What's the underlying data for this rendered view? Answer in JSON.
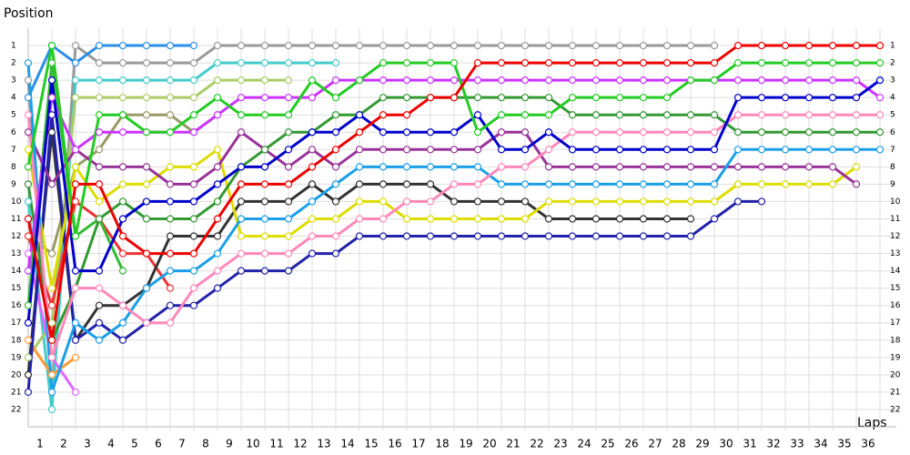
{
  "chart_data": {
    "type": "lap",
    "y_label": "Position",
    "x_label": "Laps",
    "x": [
      0,
      1,
      2,
      3,
      4,
      5,
      6,
      7,
      8,
      9,
      10,
      11,
      12,
      13,
      14,
      15,
      16,
      17,
      18,
      19,
      20,
      21,
      22,
      23,
      24,
      25,
      26,
      27,
      28,
      29,
      30,
      31,
      32,
      33,
      34,
      35,
      36
    ],
    "xlim": [
      0,
      36
    ],
    "ylim": [
      0,
      23
    ],
    "reversed": true,
    "grid": true,
    "xticks": [
      1,
      2,
      3,
      4,
      5,
      6,
      7,
      8,
      9,
      10,
      11,
      12,
      13,
      14,
      15,
      16,
      17,
      18,
      19,
      20,
      21,
      22,
      23,
      24,
      25,
      26,
      27,
      28,
      29,
      30,
      31,
      32,
      33,
      34,
      35,
      36
    ],
    "yticks": [
      1,
      2,
      3,
      4,
      5,
      6,
      7,
      8,
      9,
      10,
      11,
      12,
      13,
      14,
      15,
      16,
      17,
      18,
      19,
      20,
      21,
      22
    ],
    "series": [
      {
        "color": "#999999",
        "values": [
          3,
          21,
          1,
          2,
          2,
          2,
          2,
          2,
          1,
          1,
          1,
          1,
          1,
          1,
          1,
          1,
          1,
          1,
          1,
          1,
          1,
          1,
          1,
          1,
          1,
          1,
          1,
          1,
          1,
          1,
          null,
          null,
          null,
          null,
          null,
          null,
          null
        ]
      },
      {
        "color": "#2a8ee8",
        "values": [
          4,
          1,
          2,
          1,
          1,
          1,
          1,
          1,
          null,
          null,
          null,
          null,
          null,
          null,
          null,
          null,
          null,
          null,
          null,
          null,
          null,
          null,
          null,
          null,
          null,
          null,
          null,
          null,
          null,
          null,
          null,
          null,
          null,
          null,
          null,
          null,
          null
        ]
      },
      {
        "color": "#44cccc",
        "values": [
          10,
          22,
          3,
          3,
          3,
          3,
          3,
          3,
          2,
          2,
          2,
          2,
          2,
          2,
          null,
          null,
          null,
          null,
          null,
          null,
          null,
          null,
          null,
          null,
          null,
          null,
          null,
          null,
          null,
          null,
          null,
          null,
          null,
          null,
          null,
          null,
          null
        ]
      },
      {
        "color": "#aacc66",
        "values": [
          19,
          17,
          4,
          4,
          4,
          4,
          4,
          4,
          3,
          3,
          3,
          3,
          null,
          null,
          null,
          null,
          null,
          null,
          null,
          null,
          null,
          null,
          null,
          null,
          null,
          null,
          null,
          null,
          null,
          null,
          null,
          null,
          null,
          null,
          null,
          null,
          null
        ]
      },
      {
        "color": "#999966",
        "values": [
          12,
          13,
          8,
          7,
          5,
          5,
          5,
          6,
          5,
          null,
          null,
          null,
          null,
          null,
          null,
          null,
          null,
          null,
          null,
          null,
          null,
          null,
          null,
          null,
          null,
          null,
          null,
          null,
          null,
          null,
          null,
          null,
          null,
          null,
          null,
          null,
          null
        ]
      },
      {
        "color": "#ff9933",
        "values": [
          18,
          20,
          19,
          null,
          null,
          null,
          null,
          null,
          null,
          null,
          null,
          null,
          null,
          null,
          null,
          null,
          null,
          null,
          null,
          null,
          null,
          null,
          null,
          null,
          null,
          null,
          null,
          null,
          null,
          null,
          null,
          null,
          null,
          null,
          null,
          null,
          null
        ]
      },
      {
        "color": "#dd66ff",
        "values": [
          13,
          19,
          21,
          null,
          null,
          null,
          null,
          null,
          null,
          null,
          null,
          null,
          null,
          null,
          null,
          null,
          null,
          null,
          null,
          null,
          null,
          null,
          null,
          null,
          null,
          null,
          null,
          null,
          null,
          null,
          null,
          null,
          null,
          null,
          null,
          null,
          null
        ]
      },
      {
        "color": "#ee3333",
        "values": [
          12,
          16,
          10,
          11,
          13,
          13,
          15,
          null,
          null,
          null,
          null,
          null,
          null,
          null,
          null,
          null,
          null,
          null,
          null,
          null,
          null,
          null,
          null,
          null,
          null,
          null,
          null,
          null,
          null,
          null,
          null,
          null,
          null,
          null,
          null,
          null,
          null
        ]
      },
      {
        "color": "#33bb33",
        "values": [
          16,
          2,
          12,
          11,
          14,
          null,
          null,
          null,
          null,
          null,
          null,
          null,
          null,
          null,
          null,
          null,
          null,
          null,
          null,
          null,
          null,
          null,
          null,
          null,
          null,
          null,
          null,
          null,
          null,
          null,
          null,
          null,
          null,
          null,
          null,
          null,
          null
        ]
      },
      {
        "color": "#333333",
        "values": [
          20,
          6,
          18,
          16,
          16,
          15,
          12,
          12,
          12,
          10,
          10,
          10,
          9,
          10,
          9,
          9,
          9,
          9,
          10,
          10,
          10,
          10,
          11,
          11,
          11,
          11,
          11,
          11,
          11,
          null,
          null,
          null,
          null,
          null,
          null,
          null,
          null
        ]
      },
      {
        "color": "#2222aa",
        "values": [
          21,
          5,
          18,
          17,
          18,
          17,
          16,
          16,
          15,
          14,
          14,
          14,
          13,
          13,
          12,
          12,
          12,
          12,
          12,
          12,
          12,
          12,
          12,
          12,
          12,
          12,
          12,
          12,
          12,
          11,
          10,
          10,
          null,
          null,
          null,
          null,
          null
        ]
      },
      {
        "color": "#dddd00",
        "values": [
          7,
          15,
          8,
          10,
          9,
          9,
          8,
          8,
          7,
          12,
          12,
          12,
          11,
          11,
          10,
          10,
          11,
          11,
          11,
          11,
          11,
          11,
          10,
          10,
          10,
          10,
          10,
          10,
          10,
          10,
          9,
          9,
          9,
          9,
          9,
          8,
          null
        ]
      },
      {
        "color": "#993399",
        "values": [
          6,
          9,
          7,
          8,
          8,
          8,
          9,
          9,
          8,
          6,
          7,
          8,
          7,
          8,
          7,
          7,
          7,
          7,
          7,
          7,
          6,
          6,
          8,
          8,
          8,
          8,
          8,
          8,
          8,
          8,
          8,
          8,
          8,
          8,
          8,
          9,
          null
        ]
      },
      {
        "color": "#1a9fe8",
        "values": [
          2,
          21,
          17,
          18,
          17,
          15,
          14,
          14,
          13,
          11,
          11,
          11,
          10,
          9,
          8,
          8,
          8,
          8,
          8,
          8,
          9,
          9,
          9,
          9,
          9,
          9,
          9,
          9,
          9,
          9,
          7,
          7,
          7,
          7,
          7,
          7,
          7
        ]
      },
      {
        "color": "#339933",
        "values": [
          9,
          18,
          15,
          11,
          10,
          11,
          11,
          11,
          10,
          8,
          7,
          6,
          6,
          5,
          5,
          4,
          4,
          4,
          4,
          4,
          4,
          4,
          4,
          5,
          5,
          5,
          5,
          5,
          5,
          5,
          6,
          6,
          6,
          6,
          6,
          6,
          6
        ]
      },
      {
        "color": "#ff88bb",
        "values": [
          5,
          19,
          15,
          15,
          16,
          17,
          17,
          15,
          14,
          13,
          13,
          13,
          12,
          12,
          11,
          11,
          10,
          10,
          9,
          9,
          8,
          8,
          7,
          6,
          6,
          6,
          6,
          6,
          6,
          6,
          5,
          5,
          5,
          5,
          5,
          5,
          5
        ]
      },
      {
        "color": "#cc33ff",
        "values": [
          14,
          4,
          7,
          6,
          6,
          6,
          6,
          6,
          5,
          4,
          4,
          4,
          4,
          3,
          3,
          3,
          3,
          3,
          3,
          3,
          3,
          3,
          3,
          3,
          3,
          3,
          3,
          3,
          3,
          3,
          3,
          3,
          3,
          3,
          3,
          3,
          4
        ]
      },
      {
        "color": "#0000cc",
        "values": [
          17,
          3,
          14,
          14,
          11,
          10,
          10,
          10,
          9,
          8,
          8,
          7,
          6,
          6,
          5,
          6,
          6,
          6,
          6,
          5,
          7,
          7,
          6,
          7,
          7,
          7,
          7,
          7,
          7,
          7,
          4,
          4,
          4,
          4,
          4,
          4,
          3
        ]
      },
      {
        "color": "#22cc22",
        "values": [
          8,
          1,
          12,
          5,
          5,
          6,
          6,
          5,
          4,
          5,
          5,
          5,
          3,
          4,
          3,
          2,
          2,
          2,
          2,
          6,
          5,
          5,
          5,
          4,
          4,
          4,
          4,
          4,
          3,
          3,
          2,
          2,
          2,
          2,
          2,
          2,
          2
        ]
      },
      {
        "color": "#ee0000",
        "values": [
          11,
          18,
          9,
          9,
          12,
          13,
          13,
          13,
          11,
          9,
          9,
          9,
          8,
          7,
          6,
          5,
          5,
          4,
          4,
          2,
          2,
          2,
          2,
          2,
          2,
          2,
          2,
          2,
          2,
          2,
          1,
          1,
          1,
          1,
          1,
          1,
          1
        ]
      }
    ]
  }
}
